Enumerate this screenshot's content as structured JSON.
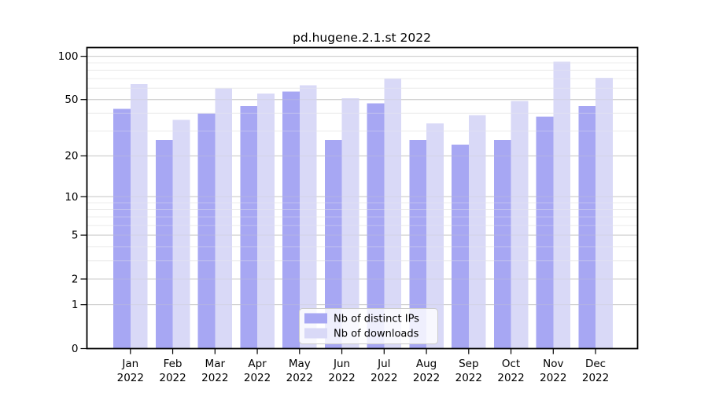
{
  "figure": {
    "title": "pd.hugene.2.1.st 2022",
    "background": "#ffffff"
  },
  "colors": {
    "axis": "#000000",
    "text": "#000000",
    "grid_major": "#c9c9c9",
    "grid_minor": "#ececec",
    "legend_border": "#cccccc",
    "legend_bg": "#ffffff"
  },
  "chart_data": {
    "type": "bar",
    "title": "pd.hugene.2.1.st 2022",
    "categories": [
      "Jan",
      "Feb",
      "Mar",
      "Apr",
      "May",
      "Jun",
      "Jul",
      "Aug",
      "Sep",
      "Oct",
      "Nov",
      "Dec"
    ],
    "year_label": "2022",
    "series": [
      {
        "name": "Nb of distinct IPs",
        "color": "#a7a7f3",
        "values": [
          43,
          26,
          40,
          45,
          57,
          26,
          47,
          26,
          24,
          26,
          38,
          45
        ]
      },
      {
        "name": "Nb of downloads",
        "color": "#d9d9f7",
        "values": [
          64,
          36,
          60,
          55,
          63,
          51,
          70,
          34,
          39,
          49,
          92,
          71
        ]
      }
    ],
    "xlabel": "",
    "ylabel": "",
    "y_scale": "log10(value+1)",
    "y_major_ticks": [
      0,
      1,
      2,
      5,
      10,
      20,
      50,
      100
    ],
    "y_minor_ticks": [
      3,
      4,
      6,
      7,
      8,
      9,
      30,
      40,
      60,
      70,
      80,
      90
    ],
    "ylim": [
      0,
      115
    ],
    "grid": true,
    "legend_position": "bottom-center"
  }
}
